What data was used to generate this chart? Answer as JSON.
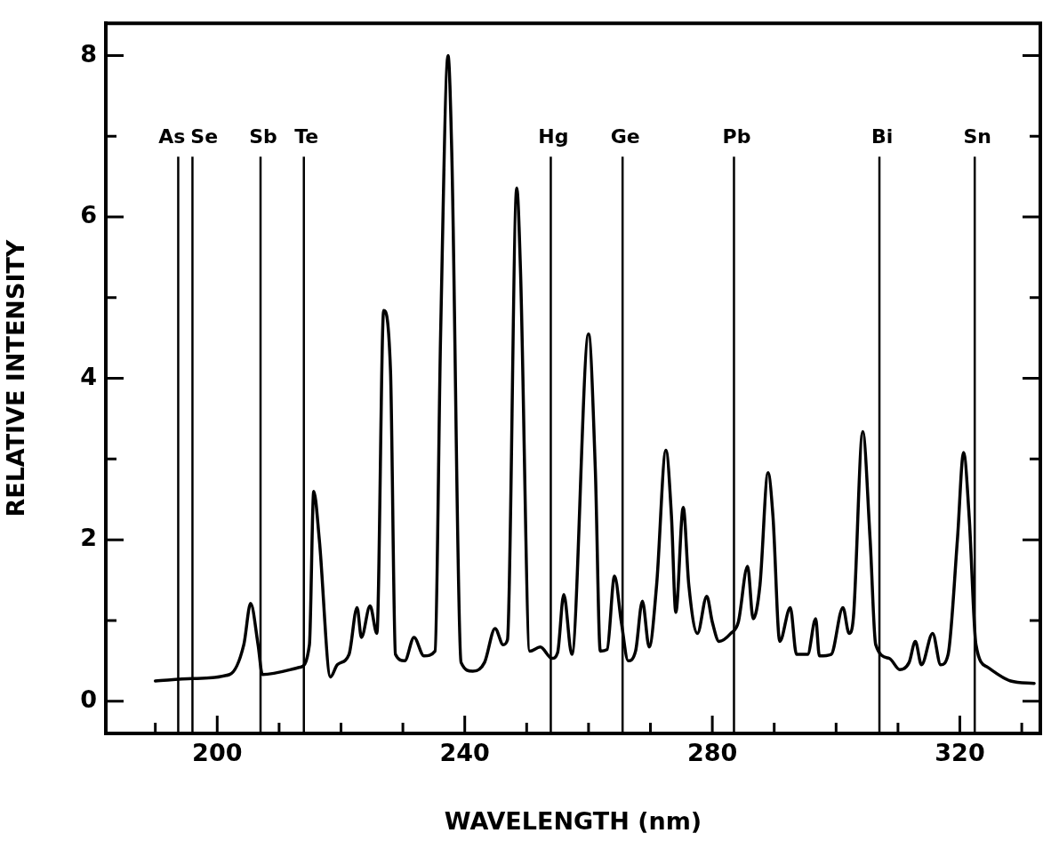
{
  "chart_data": {
    "type": "line",
    "xlabel": "WAVELENGTH (nm)",
    "ylabel": "RELATIVE INTENSITY",
    "x": [
      190,
      196,
      202,
      204.3,
      205.4,
      206.6,
      207.3,
      213.4,
      214.9,
      215.6,
      216.5,
      218.3,
      219.4,
      221.3,
      222.6,
      223.3,
      224.7,
      225.8,
      226.9,
      228,
      228.8,
      230.3,
      231.8,
      233.4,
      235.2,
      236.1,
      237.3,
      237.9,
      239.4,
      241.3,
      243.2,
      244.9,
      246.2,
      246.9,
      248.4,
      249,
      250.5,
      252.2,
      254.1,
      255,
      256,
      257.3,
      260,
      261.1,
      261.9,
      263,
      264.2,
      265.3,
      266.4,
      267.6,
      268.7,
      269.8,
      271,
      272.5,
      273.4,
      274.1,
      275.3,
      276.2,
      277.6,
      279.1,
      280,
      281.1,
      283,
      284.2,
      285.7,
      286.6,
      287.7,
      289,
      289.8,
      290.9,
      292.6,
      293.6,
      295.4,
      296.7,
      297.3,
      299.2,
      301.1,
      302.1,
      302.8,
      304.3,
      305.5,
      306.4,
      308.6,
      310.3,
      311.8,
      312.8,
      313.8,
      315.6,
      316.9,
      318.1,
      319.6,
      320.6,
      321.5,
      322.6,
      324.5,
      328.2,
      332
    ],
    "series": [
      {
        "color": "#000000",
        "values": [
          0.25,
          0.28,
          0.33,
          0.7,
          1.21,
          0.7,
          0.33,
          0.42,
          0.7,
          2.6,
          2.0,
          0.3,
          0.45,
          0.58,
          1.16,
          0.79,
          1.18,
          0.84,
          4.84,
          4.1,
          0.58,
          0.5,
          0.79,
          0.56,
          0.62,
          4.55,
          8.0,
          6.8,
          0.48,
          0.37,
          0.48,
          0.9,
          0.7,
          0.76,
          6.36,
          5.35,
          0.62,
          0.67,
          0.53,
          0.6,
          1.32,
          0.58,
          4.55,
          2.86,
          0.62,
          0.64,
          1.55,
          0.98,
          0.5,
          0.62,
          1.24,
          0.67,
          1.44,
          3.11,
          2.29,
          1.1,
          2.4,
          1.44,
          0.84,
          1.3,
          0.98,
          0.74,
          0.84,
          0.98,
          1.67,
          1.02,
          1.44,
          2.83,
          2.29,
          0.74,
          1.16,
          0.58,
          0.58,
          1.02,
          0.56,
          0.58,
          1.16,
          0.84,
          1.04,
          3.34,
          2.0,
          0.7,
          0.53,
          0.39,
          0.48,
          0.74,
          0.45,
          0.84,
          0.45,
          0.58,
          2.0,
          3.08,
          2.29,
          0.7,
          0.42,
          0.25,
          0.22
        ]
      }
    ],
    "xlim": [
      182,
      333
    ],
    "xticks": [
      {
        "value": 190,
        "label": null
      },
      200,
      {
        "value": 210,
        "label": null
      },
      {
        "value": 220,
        "label": null
      },
      {
        "value": 230,
        "label": null
      },
      240,
      {
        "value": 250,
        "label": null
      },
      {
        "value": 260,
        "label": null
      },
      {
        "value": 270,
        "label": null
      },
      280,
      {
        "value": 290,
        "label": null
      },
      {
        "value": 300,
        "label": null
      },
      {
        "value": 310,
        "label": null
      },
      320,
      {
        "value": 330,
        "label": null
      }
    ],
    "ylim": [
      -0.4,
      8.4
    ],
    "yticks": [
      0,
      {
        "value": 1,
        "label": null
      },
      2,
      {
        "value": 3,
        "label": null
      },
      4,
      {
        "value": 5,
        "label": null
      },
      6,
      {
        "value": 7,
        "label": null
      },
      8
    ],
    "ref_lines": [
      {
        "axis": "x",
        "value": 193.7,
        "label": "As"
      },
      {
        "axis": "x",
        "value": 196.0,
        "label": "Se"
      },
      {
        "axis": "x",
        "value": 207.0,
        "label": "Sb"
      },
      {
        "axis": "x",
        "value": 214.0,
        "label": "Te"
      },
      {
        "axis": "x",
        "value": 253.9,
        "label": "Hg"
      },
      {
        "axis": "x",
        "value": 265.5,
        "label": "Ge"
      },
      {
        "axis": "x",
        "value": 283.5,
        "label": "Pb"
      },
      {
        "axis": "x",
        "value": 307.0,
        "label": "Bi"
      },
      {
        "axis": "x",
        "value": 322.4,
        "label": "Sn"
      }
    ],
    "grid": false,
    "legend": false,
    "marker": "none",
    "line_style": "solid"
  }
}
